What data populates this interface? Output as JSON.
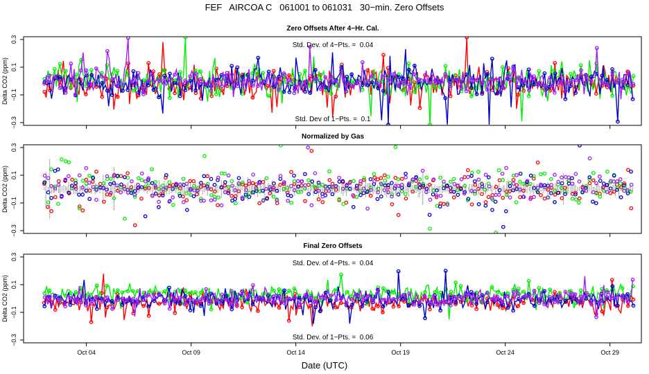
{
  "figure": {
    "title": "FEF   AIRCOA C   061001 to 061031   30−min. Zero Offsets",
    "xlabel": "Date (UTC)"
  },
  "colors": {
    "red": "#ff0000",
    "green": "#00ee00",
    "blue": "#0000cc",
    "purple": "#a020f0",
    "gray": "#555555"
  },
  "chart_data": [
    {
      "type": "line",
      "title": "Zero Offsets After 4−Hr. Cal.",
      "ylabel": "Delta CO2 (ppm)",
      "ylim": [
        -0.32,
        0.32
      ],
      "yticks": [
        0.3,
        0.1,
        -0.1,
        -0.3
      ],
      "ytick_labels": [
        "0.3",
        "0.1",
        "−0.1",
        "−0.3"
      ],
      "xlim": [
        1.0,
        30.5
      ],
      "xticks": [
        4,
        9,
        14,
        19,
        24,
        29
      ],
      "xtick_labels": [
        "Oct 04",
        "Oct 09",
        "Oct 14",
        "Oct 19",
        "Oct 24",
        "Oct 29"
      ],
      "annotations": [
        "Std. Dev. of 4−Pts. =  0.04",
        "Std. Dev of 1−Pts. =  0.1"
      ],
      "series": [
        {
          "name": "red",
          "color": "#ff0000",
          "x_range": [
            2.0,
            30.1
          ],
          "mean": -0.02,
          "sd": 0.1
        },
        {
          "name": "green",
          "color": "#00ee00",
          "x_range": [
            2.0,
            30.1
          ],
          "mean": 0.0,
          "sd": 0.1
        },
        {
          "name": "blue",
          "color": "#0000cc",
          "x_range": [
            2.0,
            30.1
          ],
          "mean": -0.01,
          "sd": 0.1
        },
        {
          "name": "purple",
          "color": "#a020f0",
          "x_range": [
            2.0,
            30.1
          ],
          "mean": 0.0,
          "sd": 0.08
        }
      ]
    },
    {
      "type": "scatter",
      "title": "Normalized by Gas",
      "ylabel": "Delta CO2 (ppm)",
      "ylim": [
        -0.32,
        0.32
      ],
      "yticks": [
        0.3,
        0.1,
        -0.1,
        -0.3
      ],
      "ytick_labels": [
        "0.3",
        "0.1",
        "−0.1",
        "−0.3"
      ],
      "xlim": [
        1.0,
        30.5
      ],
      "xticks": [
        4,
        9,
        14,
        19,
        24,
        29
      ],
      "xtick_labels": [
        "Oct 04",
        "Oct 09",
        "Oct 14",
        "Oct 19",
        "Oct 24",
        "Oct 29"
      ],
      "annotations": [],
      "series": [
        {
          "name": "red",
          "color": "#ff0000",
          "x_range": [
            2.0,
            30.1
          ],
          "mean": 0.0,
          "sd": 0.11
        },
        {
          "name": "green",
          "color": "#00ee00",
          "x_range": [
            2.0,
            30.1
          ],
          "mean": 0.02,
          "sd": 0.11
        },
        {
          "name": "blue",
          "color": "#0000cc",
          "x_range": [
            2.0,
            30.1
          ],
          "mean": 0.0,
          "sd": 0.11
        },
        {
          "name": "purple",
          "color": "#a020f0",
          "x_range": [
            2.0,
            30.1
          ],
          "mean": 0.01,
          "sd": 0.1
        },
        {
          "name": "normalized",
          "color": "#555555",
          "x_range": [
            2.0,
            30.1
          ],
          "mean": 0.0,
          "sd": 0.04
        }
      ]
    },
    {
      "type": "line",
      "title": "Final Zero Offsets",
      "ylabel": "Delta CO2 (ppm)",
      "ylim": [
        -0.32,
        0.32
      ],
      "yticks": [
        0.3,
        0.1,
        -0.1,
        -0.3
      ],
      "ytick_labels": [
        "0.3",
        "0.1",
        "−0.1",
        "−0.3"
      ],
      "xlim": [
        1.0,
        30.5
      ],
      "xticks": [
        4,
        9,
        14,
        19,
        24,
        29
      ],
      "xtick_labels": [
        "Oct 04",
        "Oct 09",
        "Oct 14",
        "Oct 19",
        "Oct 24",
        "Oct 29"
      ],
      "annotations": [
        "Std. Dev. of 4−Pts. =  0.04",
        "Std. Dev. of 1−Pts. =  0.06"
      ],
      "series": [
        {
          "name": "red",
          "color": "#ff0000",
          "x_range": [
            2.0,
            30.1
          ],
          "mean": -0.03,
          "sd": 0.06
        },
        {
          "name": "green",
          "color": "#00ee00",
          "x_range": [
            2.0,
            30.1
          ],
          "mean": 0.03,
          "sd": 0.06
        },
        {
          "name": "blue",
          "color": "#0000cc",
          "x_range": [
            2.0,
            30.1
          ],
          "mean": -0.01,
          "sd": 0.06
        },
        {
          "name": "purple",
          "color": "#a020f0",
          "x_range": [
            2.0,
            30.1
          ],
          "mean": 0.0,
          "sd": 0.05
        }
      ]
    }
  ]
}
